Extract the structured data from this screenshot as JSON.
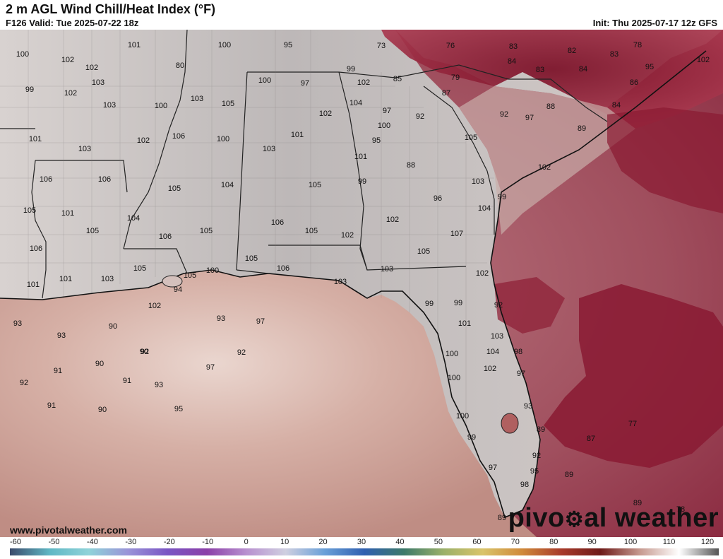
{
  "header": {
    "title": "2 m AGL Wind Chill/Heat Index (°F)",
    "valid": "F126 Valid: Tue 2025-07-22 18z",
    "init": "Init: Thu 2025-07-17 12z GFS"
  },
  "watermark": {
    "url": "www.pivotalweather.com",
    "brand_part1": "pivo",
    "brand_part2": "al weather",
    "brand_icon": "gear-icon"
  },
  "colorbar": {
    "ticks": [
      "-60",
      "-50",
      "-40",
      "-30",
      "-20",
      "-10",
      "0",
      "10",
      "20",
      "30",
      "40",
      "50",
      "60",
      "70",
      "80",
      "90",
      "100",
      "110",
      "120"
    ],
    "gradient": [
      "#3b4a6b",
      "#5fb7c4",
      "#8fd3d9",
      "#9a93d8",
      "#7a55c4",
      "#8b3fa8",
      "#b88fcf",
      "#cfcfe0",
      "#6aa0d8",
      "#2f5fb0",
      "#3d7a6a",
      "#9ab06a",
      "#d9c46a",
      "#d08a3a",
      "#a83a2a",
      "#6e1a18",
      "#c79a90",
      "#ffffff",
      "#555555"
    ]
  },
  "colors": {
    "gulf": "#c79a90",
    "gulf_light": "#e6d0c8",
    "land_hot": "#d9d4d2",
    "land_mid": "#b9b4b4",
    "atlantic": "#8e2a3e",
    "atlantic_light": "#b06070",
    "mountain_cool": "#8a1a2e",
    "border": "#333333"
  },
  "labels": [
    {
      "v": "100"
    },
    {
      "v": "102"
    },
    {
      "v": "101"
    },
    {
      "v": "100"
    },
    {
      "v": "95"
    },
    {
      "v": "73"
    },
    {
      "v": "76"
    },
    {
      "v": "83"
    },
    {
      "v": "82"
    },
    {
      "v": "83"
    },
    {
      "v": "78"
    },
    {
      "v": "102"
    },
    {
      "v": "102"
    },
    {
      "v": "103"
    },
    {
      "v": "80"
    },
    {
      "v": "84"
    },
    {
      "v": "83"
    },
    {
      "v": "84"
    },
    {
      "v": "95"
    },
    {
      "v": "99"
    },
    {
      "v": "102"
    },
    {
      "v": "100"
    },
    {
      "v": "97"
    },
    {
      "v": "99"
    },
    {
      "v": "102"
    },
    {
      "v": "85"
    },
    {
      "v": "79"
    },
    {
      "v": "86"
    },
    {
      "v": "103"
    },
    {
      "v": "100"
    },
    {
      "v": "103"
    },
    {
      "v": "105"
    },
    {
      "v": "87"
    },
    {
      "v": "104"
    },
    {
      "v": "97"
    },
    {
      "v": "88"
    },
    {
      "v": "84"
    },
    {
      "v": "102"
    },
    {
      "v": "92"
    },
    {
      "v": "92"
    },
    {
      "v": "97"
    },
    {
      "v": "100"
    },
    {
      "v": "89"
    },
    {
      "v": "101"
    },
    {
      "v": "103"
    },
    {
      "v": "102"
    },
    {
      "v": "106"
    },
    {
      "v": "100"
    },
    {
      "v": "101"
    },
    {
      "v": "95"
    },
    {
      "v": "105"
    },
    {
      "v": "103"
    },
    {
      "v": "101"
    },
    {
      "v": "88"
    },
    {
      "v": "102"
    },
    {
      "v": "106"
    },
    {
      "v": "106"
    },
    {
      "v": "105"
    },
    {
      "v": "104"
    },
    {
      "v": "105"
    },
    {
      "v": "99"
    },
    {
      "v": "103"
    },
    {
      "v": "105"
    },
    {
      "v": "101"
    },
    {
      "v": "96"
    },
    {
      "v": "99"
    },
    {
      "v": "104"
    },
    {
      "v": "105"
    },
    {
      "v": "104"
    },
    {
      "v": "106"
    },
    {
      "v": "102"
    },
    {
      "v": "106"
    },
    {
      "v": "106"
    },
    {
      "v": "105"
    },
    {
      "v": "105"
    },
    {
      "v": "102"
    },
    {
      "v": "107"
    },
    {
      "v": "105"
    },
    {
      "v": "105"
    },
    {
      "v": "105"
    },
    {
      "v": "100"
    },
    {
      "v": "105"
    },
    {
      "v": "106"
    },
    {
      "v": "103"
    },
    {
      "v": "101"
    },
    {
      "v": "101"
    },
    {
      "v": "103"
    },
    {
      "v": "94"
    },
    {
      "v": "103"
    },
    {
      "v": "102"
    },
    {
      "v": "102"
    },
    {
      "v": "99"
    },
    {
      "v": "99"
    },
    {
      "v": "93"
    },
    {
      "v": "90"
    },
    {
      "v": "93"
    },
    {
      "v": "97"
    },
    {
      "v": "101"
    },
    {
      "v": "92"
    },
    {
      "v": "93"
    },
    {
      "v": "90"
    },
    {
      "v": "92"
    },
    {
      "v": "103"
    },
    {
      "v": "91"
    },
    {
      "v": "90"
    },
    {
      "v": "92"
    },
    {
      "v": "100"
    },
    {
      "v": "104"
    },
    {
      "v": "98"
    },
    {
      "v": "92"
    },
    {
      "v": "91"
    },
    {
      "v": "93"
    },
    {
      "v": "100"
    },
    {
      "v": "102"
    },
    {
      "v": "97"
    },
    {
      "v": "91"
    },
    {
      "v": "90"
    },
    {
      "v": "95"
    },
    {
      "v": "97"
    },
    {
      "v": "93"
    },
    {
      "v": "100"
    },
    {
      "v": "89"
    },
    {
      "v": "77"
    },
    {
      "v": "99"
    },
    {
      "v": "87"
    },
    {
      "v": "92"
    },
    {
      "v": "97"
    },
    {
      "v": "95"
    },
    {
      "v": "89"
    },
    {
      "v": "98"
    },
    {
      "v": "89"
    },
    {
      "v": "78"
    },
    {
      "v": "89"
    }
  ]
}
